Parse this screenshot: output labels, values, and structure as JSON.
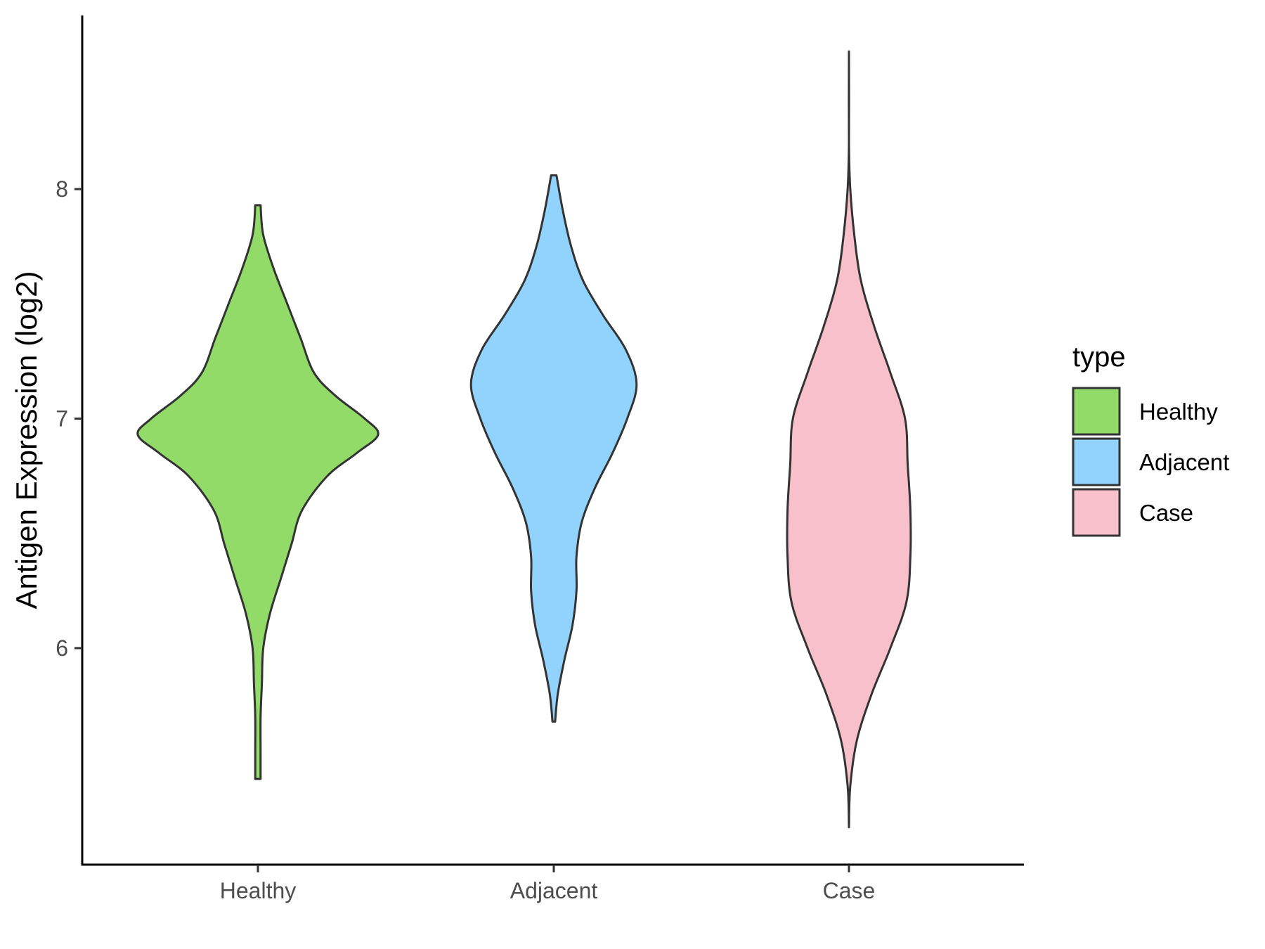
{
  "chart_data": {
    "type": "violin",
    "title": "",
    "xlabel": "",
    "ylabel": "Antigen Expression (log2)",
    "categories": [
      "Healthy",
      "Adjacent",
      "Case"
    ],
    "yticks": [
      6,
      7,
      8
    ],
    "ylim": [
      5.05,
      8.75
    ],
    "grid": false,
    "legend": {
      "title": "type",
      "placement": "right",
      "entries": [
        "Healthy",
        "Adjacent",
        "Case"
      ]
    },
    "colors": {
      "Healthy": "#93db69",
      "Adjacent": "#92d3fe",
      "Case": "#f7c0cb",
      "outline": "#333333"
    },
    "series": [
      {
        "name": "Healthy",
        "min": 5.43,
        "max": 7.93,
        "profile": [
          [
            5.43,
            0.02
          ],
          [
            5.55,
            0.02
          ],
          [
            5.7,
            0.02
          ],
          [
            5.85,
            0.03
          ],
          [
            6.0,
            0.04
          ],
          [
            6.15,
            0.09
          ],
          [
            6.3,
            0.17
          ],
          [
            6.45,
            0.25
          ],
          [
            6.6,
            0.33
          ],
          [
            6.75,
            0.52
          ],
          [
            6.85,
            0.74
          ],
          [
            6.93,
            0.9
          ],
          [
            7.0,
            0.8
          ],
          [
            7.1,
            0.58
          ],
          [
            7.2,
            0.42
          ],
          [
            7.35,
            0.32
          ],
          [
            7.5,
            0.22
          ],
          [
            7.65,
            0.12
          ],
          [
            7.8,
            0.04
          ],
          [
            7.93,
            0.02
          ]
        ]
      },
      {
        "name": "Adjacent",
        "min": 5.68,
        "max": 8.06,
        "profile": [
          [
            5.68,
            0.01
          ],
          [
            5.8,
            0.03
          ],
          [
            5.95,
            0.08
          ],
          [
            6.1,
            0.14
          ],
          [
            6.25,
            0.17
          ],
          [
            6.4,
            0.17
          ],
          [
            6.55,
            0.21
          ],
          [
            6.7,
            0.31
          ],
          [
            6.85,
            0.44
          ],
          [
            7.0,
            0.55
          ],
          [
            7.15,
            0.62
          ],
          [
            7.3,
            0.54
          ],
          [
            7.45,
            0.37
          ],
          [
            7.6,
            0.22
          ],
          [
            7.75,
            0.13
          ],
          [
            7.9,
            0.07
          ],
          [
            8.06,
            0.02
          ]
        ]
      },
      {
        "name": "Case",
        "min": 5.22,
        "max": 8.6,
        "profile": [
          [
            5.22,
            0.0
          ],
          [
            5.4,
            0.01
          ],
          [
            5.6,
            0.06
          ],
          [
            5.8,
            0.17
          ],
          [
            6.0,
            0.31
          ],
          [
            6.2,
            0.43
          ],
          [
            6.4,
            0.46
          ],
          [
            6.6,
            0.46
          ],
          [
            6.8,
            0.44
          ],
          [
            7.0,
            0.42
          ],
          [
            7.2,
            0.31
          ],
          [
            7.4,
            0.19
          ],
          [
            7.6,
            0.09
          ],
          [
            7.8,
            0.04
          ],
          [
            8.0,
            0.01
          ],
          [
            8.2,
            0.0
          ],
          [
            8.6,
            0.0
          ]
        ]
      }
    ]
  }
}
